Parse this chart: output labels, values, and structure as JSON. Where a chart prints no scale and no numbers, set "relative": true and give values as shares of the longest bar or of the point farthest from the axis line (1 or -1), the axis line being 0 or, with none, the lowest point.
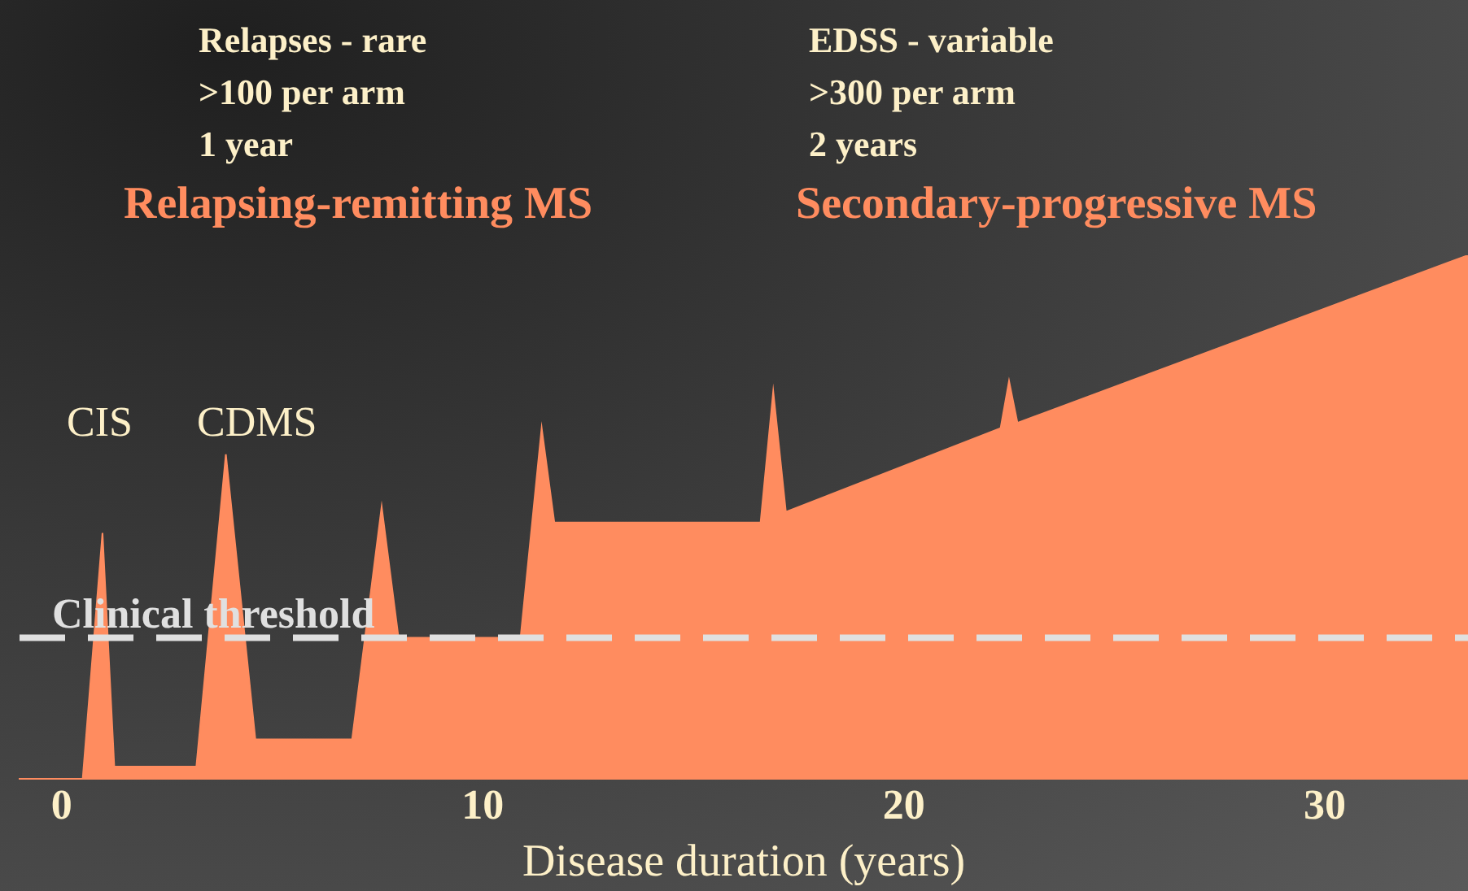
{
  "chart_data": {
    "type": "area",
    "relative": true,
    "xlabel": "Disease duration (years)",
    "xlim": [
      -1,
      33.4
    ],
    "xticks": [
      0,
      10,
      20,
      30
    ],
    "grid": false,
    "legend": false,
    "series": [
      {
        "color": "#ff8c5f",
        "x": [
          0.5,
          0.97,
          1.25,
          3.2,
          3.9,
          4.6,
          6.9,
          7.6,
          8.0,
          10.9,
          11.4,
          11.7,
          16.6,
          16.9,
          17.2,
          22.3,
          22.5,
          22.7,
          33.4
        ],
        "values": [
          0,
          0.47,
          0.024,
          0.024,
          0.62,
          0.076,
          0.076,
          0.52,
          0.27,
          0.27,
          0.67,
          0.49,
          0.49,
          0.74,
          0.51,
          0.67,
          0.76,
          0.68,
          1
        ]
      }
    ],
    "ref_lines": [
      {
        "axis": "y",
        "value": 0.27,
        "label": "Clinical threshold",
        "color": "#e0e0e0",
        "line_style": "dashed"
      }
    ],
    "annotations": [
      "Relapses - rare",
      ">100 per arm",
      "1 year",
      "Relapsing-remitting MS",
      "EDSS - variable",
      ">300 per arm",
      "2 years",
      "Secondary-progressive MS",
      "CIS",
      "CDMS"
    ]
  }
}
